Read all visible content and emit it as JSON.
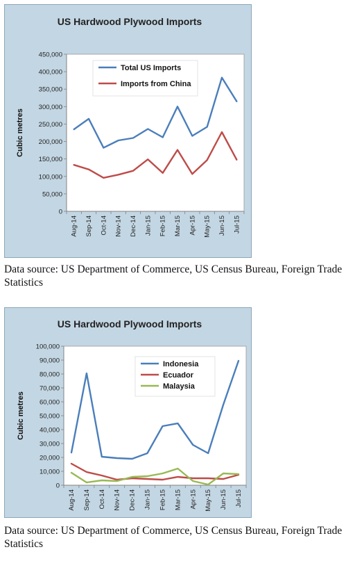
{
  "chart_data": [
    {
      "type": "line",
      "title": "US Hardwood Plywood Imports",
      "ylabel": "Cubic metres",
      "xlabel": "",
      "ylim": [
        0,
        450000
      ],
      "y_ticks": [
        0,
        50000,
        100000,
        150000,
        200000,
        250000,
        300000,
        350000,
        400000,
        450000
      ],
      "y_tick_labels": [
        "0",
        "50,000",
        "100,000",
        "150,000",
        "200,000",
        "250,000",
        "300,000",
        "350,000",
        "400,000",
        "450,000"
      ],
      "categories": [
        "Aug-14",
        "Sep-14",
        "Oct-14",
        "Nov-14",
        "Dec-14",
        "Jan-15",
        "Feb-15",
        "Mar-15",
        "Apr-15",
        "May-15",
        "Jun-15",
        "Jul-15"
      ],
      "legend_position": "top-left",
      "grid": false,
      "series": [
        {
          "name": "Total US Imports",
          "color": "#4a7ebb",
          "values": [
            235000,
            265000,
            182000,
            203000,
            210000,
            236000,
            212000,
            300000,
            216000,
            242000,
            383000,
            315000
          ]
        },
        {
          "name": "Imports from China",
          "color": "#be4b48",
          "values": [
            133000,
            120000,
            96000,
            105000,
            116000,
            149000,
            110000,
            176000,
            107000,
            147000,
            227000,
            148000
          ]
        }
      ]
    },
    {
      "type": "line",
      "title": "US Hardwood Plywood Imports",
      "ylabel": "Cubic metres",
      "xlabel": "",
      "ylim": [
        0,
        100000
      ],
      "y_ticks": [
        0,
        10000,
        20000,
        30000,
        40000,
        50000,
        60000,
        70000,
        80000,
        90000,
        100000
      ],
      "y_tick_labels": [
        "0",
        "10,000",
        "20,000",
        "30,000",
        "40,000",
        "50,000",
        "60,000",
        "70,000",
        "80,000",
        "90,000",
        "100,000"
      ],
      "categories": [
        "Aug-14",
        "Sep-14",
        "Oct-14",
        "Nov-14",
        "Dec-14",
        "Jan-15",
        "Feb-15",
        "Mar-15",
        "Apr-15",
        "May-15",
        "Jun-15",
        "Jul-15"
      ],
      "legend_position": "top-right",
      "grid": false,
      "series": [
        {
          "name": "Indonesia",
          "color": "#4a7ebb",
          "values": [
            23500,
            80500,
            20500,
            19500,
            19000,
            23000,
            42500,
            44500,
            29000,
            23000,
            58000,
            89500
          ]
        },
        {
          "name": "Ecuador",
          "color": "#be4b48",
          "values": [
            15500,
            9500,
            7000,
            4000,
            5000,
            4500,
            4000,
            6000,
            5000,
            5000,
            4500,
            7500
          ]
        },
        {
          "name": "Malaysia",
          "color": "#98b954",
          "values": [
            9000,
            2000,
            3500,
            3000,
            6000,
            6500,
            8500,
            12000,
            3000,
            500,
            8500,
            8000
          ]
        }
      ]
    }
  ],
  "sources": [
    "Data source: US Department of Commerce, US Census Bureau, Foreign Trade Statistics",
    "Data source: US Department of Commerce, US Census Bureau, Foreign Trade Statistics"
  ]
}
